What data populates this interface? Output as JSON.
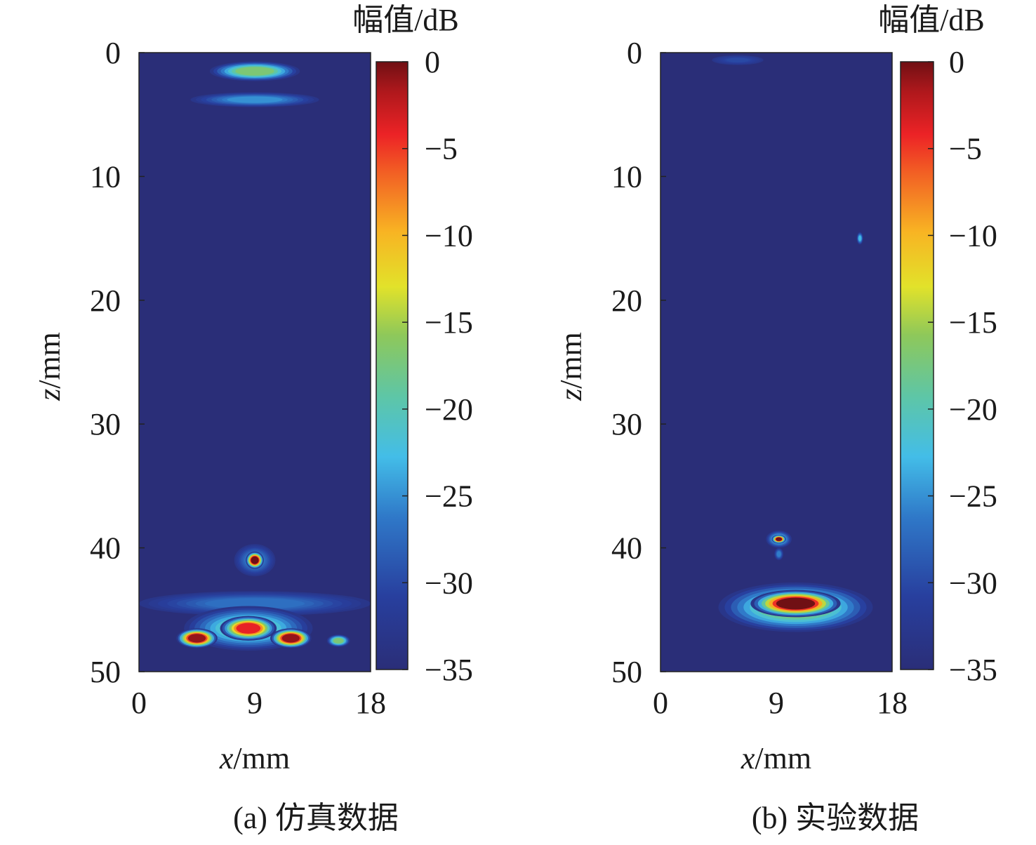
{
  "chart_data": [
    {
      "type": "heatmap",
      "caption": "(a) 仿真数据",
      "xlabel_var": "x",
      "xlabel_unit": "/mm",
      "ylabel_var": "z",
      "ylabel_unit": "/mm",
      "x_ticks": [
        0,
        9,
        18
      ],
      "z_ticks": [
        0,
        10,
        20,
        30,
        40,
        50
      ],
      "xlim": [
        0,
        18
      ],
      "zlim": [
        0,
        50
      ],
      "colorbar": {
        "title": "幅值/dB",
        "ticks": [
          "0",
          "−5",
          "−10",
          "−15",
          "−20",
          "−25",
          "−30",
          "−35"
        ],
        "range": [
          -35,
          0
        ],
        "colormap": "jet"
      },
      "features": [
        {
          "x": 9.0,
          "z": 1.5,
          "sx": 3.5,
          "sz": 0.8,
          "db": -17
        },
        {
          "x": 9.0,
          "z": 3.8,
          "sx": 5.0,
          "sz": 0.6,
          "db": -25
        },
        {
          "x": 9.0,
          "z": 41.0,
          "sx": 0.7,
          "sz": 0.7,
          "db": 0
        },
        {
          "x": 9.0,
          "z": 41.0,
          "sx": 1.6,
          "sz": 1.3,
          "db": -26
        },
        {
          "x": 4.5,
          "z": 47.3,
          "sx": 1.6,
          "sz": 0.8,
          "db": -1
        },
        {
          "x": 8.5,
          "z": 46.5,
          "sx": 2.2,
          "sz": 1.0,
          "db": -4
        },
        {
          "x": 11.8,
          "z": 47.3,
          "sx": 1.6,
          "sz": 0.8,
          "db": -1
        },
        {
          "x": 8.5,
          "z": 46.5,
          "sx": 5.0,
          "sz": 1.8,
          "db": -20
        },
        {
          "x": 15.5,
          "z": 47.5,
          "sx": 0.9,
          "sz": 0.5,
          "db": -17
        },
        {
          "x": 9.0,
          "z": 44.5,
          "sx": 9.0,
          "sz": 1.0,
          "db": -27
        }
      ]
    },
    {
      "type": "heatmap",
      "caption": "(b) 实验数据",
      "xlabel_var": "x",
      "xlabel_unit": "/mm",
      "ylabel_var": "z",
      "ylabel_unit": "/mm",
      "x_ticks": [
        0,
        9,
        18
      ],
      "z_ticks": [
        0,
        10,
        20,
        30,
        40,
        50
      ],
      "xlim": [
        0,
        18
      ],
      "zlim": [
        0,
        50
      ],
      "colorbar": {
        "title": "幅值/dB",
        "ticks": [
          "0",
          "−5",
          "−10",
          "−15",
          "−20",
          "−25",
          "−30",
          "−35"
        ],
        "range": [
          -35,
          0
        ],
        "colormap": "jet"
      },
      "features": [
        {
          "x": 6.0,
          "z": 0.6,
          "sx": 2.0,
          "sz": 0.4,
          "db": -30
        },
        {
          "x": 15.5,
          "z": 15.0,
          "sx": 0.25,
          "sz": 0.5,
          "db": -23
        },
        {
          "x": 9.2,
          "z": 39.3,
          "sx": 0.55,
          "sz": 0.35,
          "db": 0
        },
        {
          "x": 9.2,
          "z": 39.3,
          "sx": 1.0,
          "sz": 0.7,
          "db": -22
        },
        {
          "x": 9.2,
          "z": 40.5,
          "sx": 0.35,
          "sz": 0.5,
          "db": -26
        },
        {
          "x": 10.5,
          "z": 44.5,
          "sx": 3.5,
          "sz": 1.1,
          "db": 0
        },
        {
          "x": 10.5,
          "z": 44.8,
          "sx": 6.0,
          "sz": 2.0,
          "db": -17
        }
      ]
    }
  ]
}
